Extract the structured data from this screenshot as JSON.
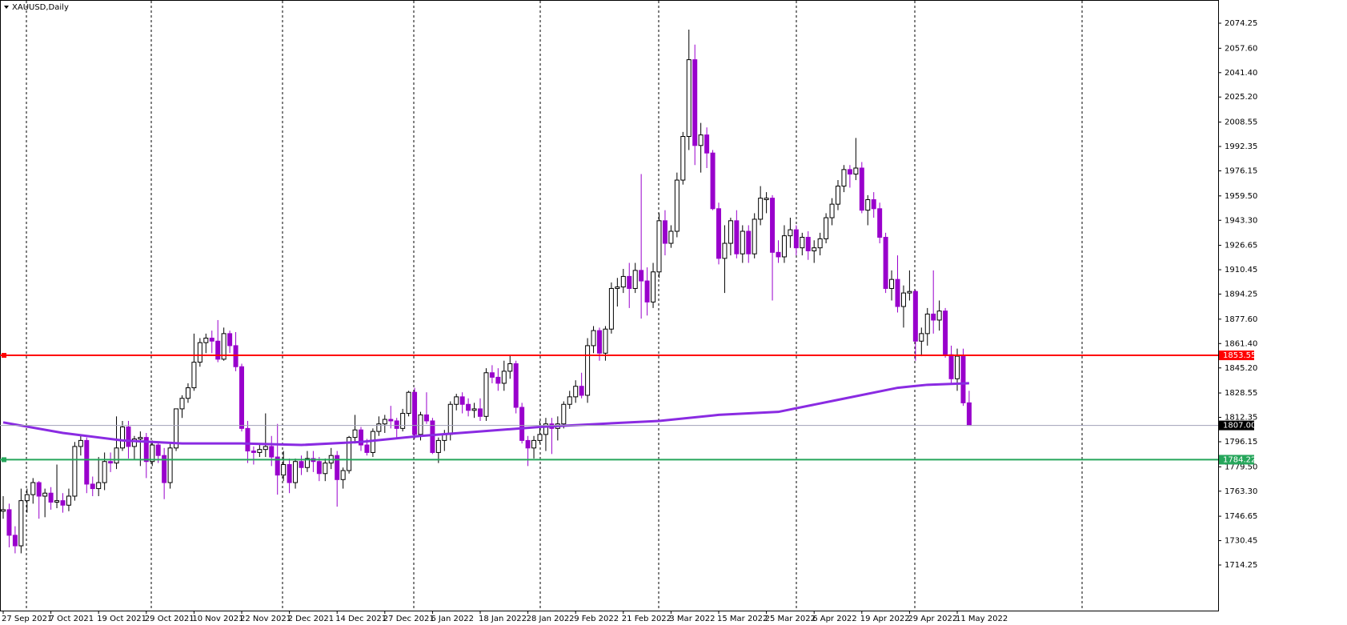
{
  "chart_data": {
    "type": "candlestick",
    "title": "XAUUSD,Daily",
    "categories": [
      "27 Sep 2021",
      null,
      null,
      null,
      null,
      null,
      null,
      null,
      "7 Oct 2021",
      null,
      null,
      null,
      null,
      null,
      null,
      null,
      "19 Oct 2021",
      null,
      null,
      null,
      null,
      null,
      null,
      null,
      "29 Oct 2021",
      null,
      null,
      null,
      null,
      null,
      null,
      null,
      "10 Nov 2021",
      null,
      null,
      null,
      null,
      null,
      null,
      null,
      "22 Nov 2021",
      null,
      null,
      null,
      null,
      null,
      null,
      null,
      "2 Dec 2021",
      null,
      null,
      null,
      null,
      null,
      null,
      null,
      "14 Dec 2021",
      null,
      null,
      null,
      null,
      null,
      null,
      null,
      "27 Dec 2021",
      null,
      null,
      null,
      null,
      null,
      null,
      null,
      "6 Jan 2022",
      null,
      null,
      null,
      null,
      null,
      null,
      null,
      "18 Jan 2022",
      null,
      null,
      null,
      null,
      null,
      null,
      null,
      "28 Jan 2022",
      null,
      null,
      null,
      null,
      null,
      null,
      null,
      "9 Feb 2022",
      null,
      null,
      null,
      null,
      null,
      null,
      null,
      "21 Feb 2022",
      null,
      null,
      null,
      null,
      null,
      null,
      null,
      "3 Mar 2022",
      null,
      null,
      null,
      null,
      null,
      null,
      null,
      "15 Mar 2022",
      null,
      null,
      null,
      null,
      null,
      null,
      null,
      "25 Mar 2022",
      null,
      null,
      null,
      null,
      null,
      null,
      null,
      "6 Apr 2022",
      null,
      null,
      null,
      null,
      null,
      null,
      null,
      "19 Apr 2022",
      null,
      null,
      null,
      null,
      null,
      null,
      null,
      "29 Apr 2022",
      null,
      null,
      null,
      null,
      null,
      null,
      null,
      "11 May 2022",
      null,
      null
    ],
    "ohlc": [
      [
        1750,
        1760,
        1745,
        1751
      ],
      [
        1751,
        1755,
        1726,
        1734
      ],
      [
        1734,
        1740,
        1722,
        1727
      ],
      [
        1727,
        1765,
        1722,
        1757
      ],
      [
        1757,
        1765,
        1749,
        1761
      ],
      [
        1761,
        1772,
        1755,
        1769
      ],
      [
        1769,
        1770,
        1745,
        1760
      ],
      [
        1760,
        1765,
        1746,
        1762
      ],
      [
        1762,
        1766,
        1751,
        1756
      ],
      [
        1756,
        1781,
        1752,
        1757
      ],
      [
        1757,
        1762,
        1749,
        1754
      ],
      [
        1754,
        1765,
        1750,
        1760
      ],
      [
        1760,
        1796,
        1757,
        1793
      ],
      [
        1793,
        1800,
        1787,
        1797
      ],
      [
        1797,
        1799,
        1762,
        1768
      ],
      [
        1768,
        1773,
        1760,
        1765
      ],
      [
        1765,
        1786,
        1760,
        1769
      ],
      [
        1769,
        1789,
        1764,
        1783
      ],
      [
        1783,
        1789,
        1776,
        1782
      ],
      [
        1782,
        1813,
        1778,
        1792
      ],
      [
        1792,
        1810,
        1790,
        1806
      ],
      [
        1806,
        1810,
        1785,
        1793
      ],
      [
        1793,
        1800,
        1784,
        1798
      ],
      [
        1798,
        1803,
        1780,
        1799
      ],
      [
        1799,
        1802,
        1772,
        1783
      ],
      [
        1783,
        1797,
        1780,
        1794
      ],
      [
        1794,
        1796,
        1782,
        1787
      ],
      [
        1787,
        1792,
        1758,
        1769
      ],
      [
        1769,
        1795,
        1765,
        1792
      ],
      [
        1792,
        1818,
        1790,
        1818
      ],
      [
        1818,
        1827,
        1812,
        1825
      ],
      [
        1825,
        1835,
        1822,
        1832
      ],
      [
        1832,
        1868,
        1830,
        1849
      ],
      [
        1849,
        1865,
        1846,
        1862
      ],
      [
        1862,
        1868,
        1855,
        1865
      ],
      [
        1865,
        1870,
        1855,
        1863
      ],
      [
        1863,
        1877,
        1849,
        1851
      ],
      [
        1851,
        1872,
        1850,
        1868
      ],
      [
        1868,
        1870,
        1855,
        1860
      ],
      [
        1860,
        1869,
        1843,
        1846
      ],
      [
        1846,
        1848,
        1803,
        1805
      ],
      [
        1805,
        1810,
        1782,
        1790
      ],
      [
        1790,
        1793,
        1781,
        1789
      ],
      [
        1789,
        1795,
        1786,
        1791
      ],
      [
        1791,
        1815,
        1786,
        1793
      ],
      [
        1793,
        1800,
        1780,
        1786
      ],
      [
        1786,
        1808,
        1761,
        1774
      ],
      [
        1774,
        1790,
        1770,
        1781
      ],
      [
        1781,
        1785,
        1762,
        1769
      ],
      [
        1769,
        1785,
        1765,
        1783
      ],
      [
        1783,
        1787,
        1774,
        1779
      ],
      [
        1779,
        1790,
        1776,
        1785
      ],
      [
        1785,
        1790,
        1776,
        1783
      ],
      [
        1783,
        1786,
        1770,
        1775
      ],
      [
        1775,
        1785,
        1770,
        1782
      ],
      [
        1782,
        1792,
        1778,
        1787
      ],
      [
        1787,
        1790,
        1753,
        1771
      ],
      [
        1771,
        1779,
        1765,
        1777
      ],
      [
        1777,
        1800,
        1775,
        1799
      ],
      [
        1799,
        1814,
        1795,
        1804
      ],
      [
        1804,
        1806,
        1790,
        1794
      ],
      [
        1794,
        1798,
        1787,
        1789
      ],
      [
        1789,
        1805,
        1786,
        1803
      ],
      [
        1803,
        1813,
        1800,
        1808
      ],
      [
        1808,
        1814,
        1802,
        1811
      ],
      [
        1811,
        1820,
        1805,
        1810
      ],
      [
        1810,
        1812,
        1798,
        1805
      ],
      [
        1805,
        1818,
        1803,
        1815
      ],
      [
        1815,
        1830,
        1813,
        1829
      ],
      [
        1829,
        1832,
        1798,
        1801
      ],
      [
        1801,
        1816,
        1797,
        1814
      ],
      [
        1814,
        1829,
        1808,
        1810
      ],
      [
        1810,
        1812,
        1788,
        1789
      ],
      [
        1789,
        1799,
        1782,
        1797
      ],
      [
        1797,
        1804,
        1790,
        1801
      ],
      [
        1801,
        1823,
        1797,
        1821
      ],
      [
        1821,
        1828,
        1817,
        1826
      ],
      [
        1826,
        1829,
        1815,
        1821
      ],
      [
        1821,
        1825,
        1813,
        1817
      ],
      [
        1817,
        1822,
        1812,
        1818
      ],
      [
        1818,
        1825,
        1810,
        1813
      ],
      [
        1813,
        1845,
        1810,
        1842
      ],
      [
        1842,
        1847,
        1835,
        1839
      ],
      [
        1839,
        1845,
        1830,
        1835
      ],
      [
        1835,
        1850,
        1830,
        1843
      ],
      [
        1843,
        1854,
        1838,
        1848
      ],
      [
        1848,
        1850,
        1815,
        1819
      ],
      [
        1819,
        1822,
        1795,
        1797
      ],
      [
        1797,
        1800,
        1780,
        1792
      ],
      [
        1792,
        1800,
        1785,
        1797
      ],
      [
        1797,
        1810,
        1795,
        1801
      ],
      [
        1801,
        1812,
        1790,
        1808
      ],
      [
        1808,
        1812,
        1788,
        1805
      ],
      [
        1805,
        1813,
        1797,
        1808
      ],
      [
        1808,
        1823,
        1805,
        1821
      ],
      [
        1821,
        1830,
        1818,
        1826
      ],
      [
        1826,
        1837,
        1822,
        1833
      ],
      [
        1833,
        1842,
        1825,
        1827
      ],
      [
        1827,
        1865,
        1822,
        1860
      ],
      [
        1860,
        1873,
        1855,
        1870
      ],
      [
        1870,
        1872,
        1850,
        1855
      ],
      [
        1855,
        1873,
        1850,
        1871
      ],
      [
        1871,
        1902,
        1868,
        1898
      ],
      [
        1898,
        1905,
        1886,
        1899
      ],
      [
        1899,
        1911,
        1895,
        1906
      ],
      [
        1906,
        1915,
        1885,
        1898
      ],
      [
        1898,
        1915,
        1895,
        1910
      ],
      [
        1910,
        1974,
        1878,
        1903
      ],
      [
        1903,
        1912,
        1880,
        1889
      ],
      [
        1889,
        1915,
        1885,
        1909
      ],
      [
        1909,
        1948,
        1905,
        1943
      ],
      [
        1943,
        1950,
        1920,
        1928
      ],
      [
        1928,
        1940,
        1925,
        1936
      ],
      [
        1936,
        1975,
        1932,
        1970
      ],
      [
        1970,
        2002,
        1967,
        1999
      ],
      [
        1999,
        2070,
        1990,
        2050
      ],
      [
        2050,
        2060,
        1980,
        1993
      ],
      [
        1993,
        2008,
        1975,
        2000
      ],
      [
        2000,
        2005,
        1978,
        1988
      ],
      [
        1988,
        1990,
        1950,
        1951
      ],
      [
        1951,
        1955,
        1914,
        1918
      ],
      [
        1918,
        1940,
        1895,
        1928
      ],
      [
        1928,
        1945,
        1920,
        1943
      ],
      [
        1943,
        1950,
        1918,
        1921
      ],
      [
        1921,
        1940,
        1915,
        1936
      ],
      [
        1936,
        1940,
        1915,
        1921
      ],
      [
        1921,
        1948,
        1918,
        1944
      ],
      [
        1944,
        1966,
        1940,
        1958
      ],
      [
        1957,
        1962,
        1948,
        1958
      ],
      [
        1958,
        1960,
        1890,
        1922
      ],
      [
        1922,
        1930,
        1915,
        1919
      ],
      [
        1919,
        1940,
        1915,
        1933
      ],
      [
        1933,
        1945,
        1925,
        1937
      ],
      [
        1937,
        1940,
        1920,
        1925
      ],
      [
        1925,
        1935,
        1920,
        1932
      ],
      [
        1932,
        1936,
        1917,
        1923
      ],
      [
        1923,
        1930,
        1915,
        1925
      ],
      [
        1925,
        1935,
        1920,
        1931
      ],
      [
        1931,
        1948,
        1928,
        1945
      ],
      [
        1945,
        1958,
        1940,
        1954
      ],
      [
        1954,
        1970,
        1950,
        1966
      ],
      [
        1966,
        1980,
        1962,
        1977
      ],
      [
        1977,
        1980,
        1965,
        1974
      ],
      [
        1974,
        1998,
        1970,
        1978
      ],
      [
        1978,
        1982,
        1948,
        1950
      ],
      [
        1950,
        1960,
        1940,
        1957
      ],
      [
        1957,
        1962,
        1945,
        1951
      ],
      [
        1951,
        1955,
        1928,
        1932
      ],
      [
        1932,
        1935,
        1895,
        1898
      ],
      [
        1898,
        1910,
        1890,
        1904
      ],
      [
        1904,
        1920,
        1882,
        1886
      ],
      [
        1886,
        1900,
        1872,
        1895
      ],
      [
        1895,
        1910,
        1890,
        1896
      ],
      [
        1896,
        1897,
        1850,
        1863
      ],
      [
        1863,
        1872,
        1853,
        1868
      ],
      [
        1868,
        1885,
        1860,
        1881
      ],
      [
        1881,
        1910,
        1868,
        1877
      ],
      [
        1877,
        1890,
        1870,
        1883
      ],
      [
        1883,
        1885,
        1852,
        1854
      ],
      [
        1854,
        1860,
        1835,
        1838
      ],
      [
        1838,
        1858,
        1830,
        1853
      ],
      [
        1853,
        1858,
        1820,
        1822
      ],
      [
        1822,
        1830,
        1807,
        1807
      ]
    ],
    "colors": {
      "up": "#ffffff",
      "down": "#9900cc",
      "outline": "#000000"
    },
    "ma": {
      "color": "#8a2be2",
      "x": [
        0,
        10,
        20,
        30,
        40,
        50,
        60,
        70,
        80,
        90,
        100,
        110,
        120,
        130,
        140,
        150,
        155,
        162
      ],
      "values": [
        1809,
        1802,
        1797,
        1795,
        1795,
        1794,
        1796,
        1800,
        1803,
        1806,
        1808,
        1810,
        1814,
        1816,
        1824,
        1832,
        1834,
        1835
      ]
    },
    "hlines": [
      {
        "value": 1853.55,
        "color": "#ff0000"
      },
      {
        "value": 1784.22,
        "color": "#26a65b"
      }
    ],
    "bid": {
      "value": {
        "value": 1807,
        "label": "1807.00"
      },
      "color": "#a0a0b8"
    },
    "ylim": [
      1683.95,
      2089.67
    ],
    "yticks": [
      2074.25,
      {
        "value": 2057.6,
        "label": "2057.60"
      },
      {
        "value": 2041.4,
        "label": "2041.40"
      },
      {
        "value": 2025.2,
        "label": "2025.20"
      },
      2008.55,
      1992.35,
      1976.15,
      {
        "value": 1959.5,
        "label": "1959.50"
      },
      {
        "value": 1943.3,
        "label": "1943.30"
      },
      1926.65,
      1910.45,
      1894.25,
      {
        "value": 1877.6,
        "label": "1877.60"
      },
      {
        "value": 1861.4,
        "label": "1861.40"
      },
      {
        "value": 1845.2,
        "label": "1845.20"
      },
      1828.55,
      1812.35,
      1796.15,
      {
        "value": 1779.5,
        "label": "1779.50"
      },
      {
        "value": 1763.3,
        "label": "1763.30"
      },
      1746.65,
      1730.45,
      1714.25
    ]
  }
}
